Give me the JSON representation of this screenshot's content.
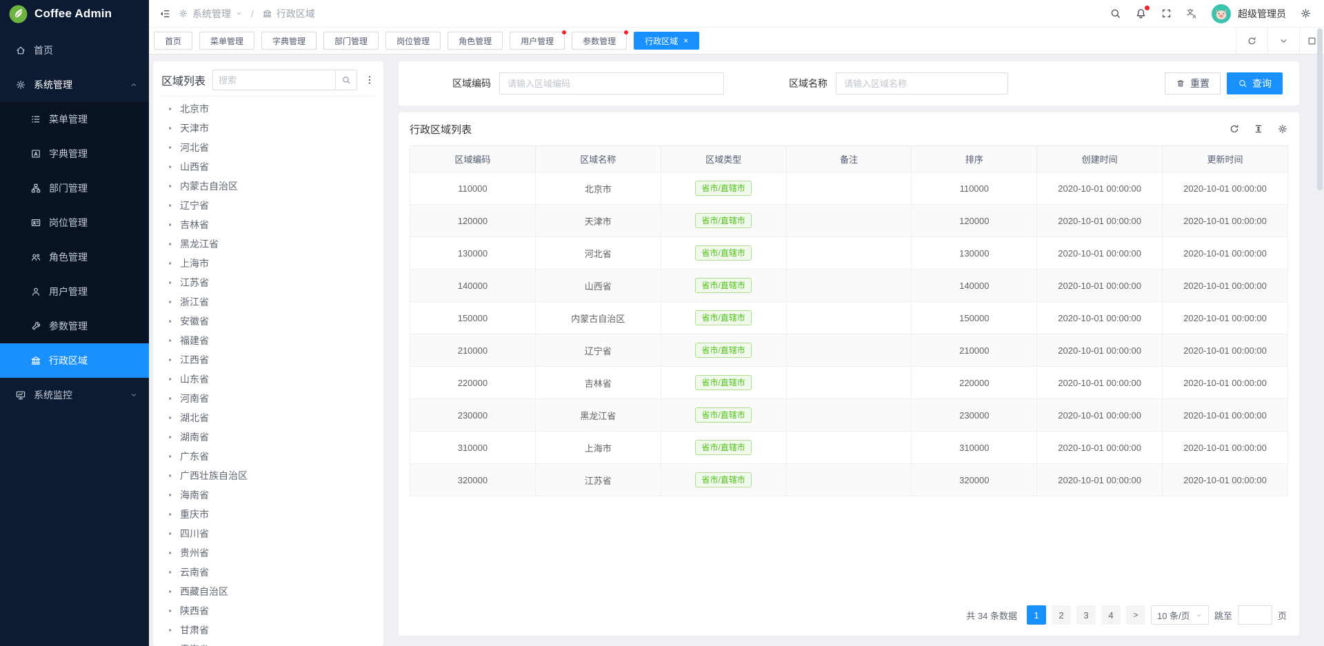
{
  "app": {
    "title": "Coffee Admin",
    "logo_icon": "leaf-logo"
  },
  "topbar": {
    "collapse_icon": "collapse-icon",
    "breadcrumb": {
      "section": "系统管理",
      "section_icon": "gear-icon",
      "page": "行政区域",
      "page_icon": "bank-icon",
      "separator": "/"
    },
    "right_icons": [
      "search-icon",
      "bell-icon",
      "fullscreen-icon",
      "translate-icon"
    ],
    "user_name": "超级管理员",
    "settings_icon": "gear-icon"
  },
  "sidebar": {
    "items": [
      {
        "key": "home",
        "label": "首页",
        "icon": "home-icon"
      },
      {
        "key": "system-management",
        "label": "系统管理",
        "icon": "gear-icon",
        "expanded": true,
        "children": [
          {
            "key": "menu-management",
            "label": "菜单管理",
            "icon": "menu-list-icon"
          },
          {
            "key": "dict-management",
            "label": "字典管理",
            "icon": "dictionary-icon"
          },
          {
            "key": "dept-management",
            "label": "部门管理",
            "icon": "org-icon"
          },
          {
            "key": "post-management",
            "label": "岗位管理",
            "icon": "badge-icon"
          },
          {
            "key": "role-management",
            "label": "角色管理",
            "icon": "roles-icon"
          },
          {
            "key": "user-management",
            "label": "用户管理",
            "icon": "user-icon"
          },
          {
            "key": "param-management",
            "label": "参数管理",
            "icon": "wrench-icon"
          },
          {
            "key": "admin-region",
            "label": "行政区域",
            "icon": "bank-icon",
            "active": true
          }
        ]
      },
      {
        "key": "system-monitor",
        "label": "系统监控",
        "icon": "monitor-icon",
        "expanded": false
      }
    ]
  },
  "tabs": {
    "items": [
      {
        "label": "首页"
      },
      {
        "label": "菜单管理"
      },
      {
        "label": "字典管理"
      },
      {
        "label": "部门管理"
      },
      {
        "label": "岗位管理"
      },
      {
        "label": "角色管理"
      },
      {
        "label": "用户管理",
        "dot": true
      },
      {
        "label": "参数管理",
        "dot": true
      },
      {
        "label": "行政区域",
        "active": true,
        "close": "×"
      }
    ],
    "controls": [
      "refresh-icon",
      "chevron-down-icon",
      "maximize-icon"
    ]
  },
  "tree": {
    "title": "区域列表",
    "search_placeholder": "搜索",
    "search_icon": "search-icon",
    "menu_icon": "kebab-icon",
    "items": [
      "北京市",
      "天津市",
      "河北省",
      "山西省",
      "内蒙古自治区",
      "辽宁省",
      "吉林省",
      "黑龙江省",
      "上海市",
      "江苏省",
      "浙江省",
      "安徽省",
      "福建省",
      "江西省",
      "山东省",
      "河南省",
      "湖北省",
      "湖南省",
      "广东省",
      "广西壮族自治区",
      "海南省",
      "重庆市",
      "四川省",
      "贵州省",
      "云南省",
      "西藏自治区",
      "陕西省",
      "甘肃省",
      "青海省"
    ]
  },
  "filter": {
    "code_label": "区域编码",
    "code_placeholder": "请输入区域编码",
    "code_value": "",
    "name_label": "区域名称",
    "name_placeholder": "请输入区域名称",
    "name_value": "",
    "reset_label": "重置",
    "reset_icon": "trash-icon",
    "search_label": "查询",
    "search_icon": "search-icon"
  },
  "table_card": {
    "title": "行政区域列表",
    "tools": [
      "refresh-icon",
      "density-icon",
      "gear-icon"
    ]
  },
  "table": {
    "columns": [
      "区域编码",
      "区域名称",
      "区域类型",
      "备注",
      "排序",
      "创建时间",
      "更新时间"
    ],
    "rows": [
      {
        "code": "110000",
        "name": "北京市",
        "type": "省市/直辖市",
        "remark": "",
        "sort": "110000",
        "created_at": "2020-10-01 00:00:00",
        "updated_at": "2020-10-01 00:00:00"
      },
      {
        "code": "120000",
        "name": "天津市",
        "type": "省市/直辖市",
        "remark": "",
        "sort": "120000",
        "created_at": "2020-10-01 00:00:00",
        "updated_at": "2020-10-01 00:00:00"
      },
      {
        "code": "130000",
        "name": "河北省",
        "type": "省市/直辖市",
        "remark": "",
        "sort": "130000",
        "created_at": "2020-10-01 00:00:00",
        "updated_at": "2020-10-01 00:00:00"
      },
      {
        "code": "140000",
        "name": "山西省",
        "type": "省市/直辖市",
        "remark": "",
        "sort": "140000",
        "created_at": "2020-10-01 00:00:00",
        "updated_at": "2020-10-01 00:00:00"
      },
      {
        "code": "150000",
        "name": "内蒙古自治区",
        "type": "省市/直辖市",
        "remark": "",
        "sort": "150000",
        "created_at": "2020-10-01 00:00:00",
        "updated_at": "2020-10-01 00:00:00"
      },
      {
        "code": "210000",
        "name": "辽宁省",
        "type": "省市/直辖市",
        "remark": "",
        "sort": "210000",
        "created_at": "2020-10-01 00:00:00",
        "updated_at": "2020-10-01 00:00:00"
      },
      {
        "code": "220000",
        "name": "吉林省",
        "type": "省市/直辖市",
        "remark": "",
        "sort": "220000",
        "created_at": "2020-10-01 00:00:00",
        "updated_at": "2020-10-01 00:00:00"
      },
      {
        "code": "230000",
        "name": "黑龙江省",
        "type": "省市/直辖市",
        "remark": "",
        "sort": "230000",
        "created_at": "2020-10-01 00:00:00",
        "updated_at": "2020-10-01 00:00:00"
      },
      {
        "code": "310000",
        "name": "上海市",
        "type": "省市/直辖市",
        "remark": "",
        "sort": "310000",
        "created_at": "2020-10-01 00:00:00",
        "updated_at": "2020-10-01 00:00:00"
      },
      {
        "code": "320000",
        "name": "江苏省",
        "type": "省市/直辖市",
        "remark": "",
        "sort": "320000",
        "created_at": "2020-10-01 00:00:00",
        "updated_at": "2020-10-01 00:00:00"
      }
    ]
  },
  "pagination": {
    "total_text": "共 34 条数据",
    "pages": [
      "1",
      "2",
      "3",
      "4"
    ],
    "active_page": "1",
    "next_label": ">",
    "page_size": "10 条/页",
    "jump_prefix": "跳至",
    "jump_value": "",
    "jump_suffix": "页"
  },
  "colors": {
    "accent": "#1890ff",
    "sidebar_bg": "#0c1a32",
    "submenu_bg": "#081222",
    "content_bg": "#eef0f4",
    "tag_text": "#52c41a",
    "tag_bg": "#f0f9eb",
    "tag_border": "#aede8d",
    "badge_red": "#f5222d",
    "logo_green": "#6db33f"
  }
}
